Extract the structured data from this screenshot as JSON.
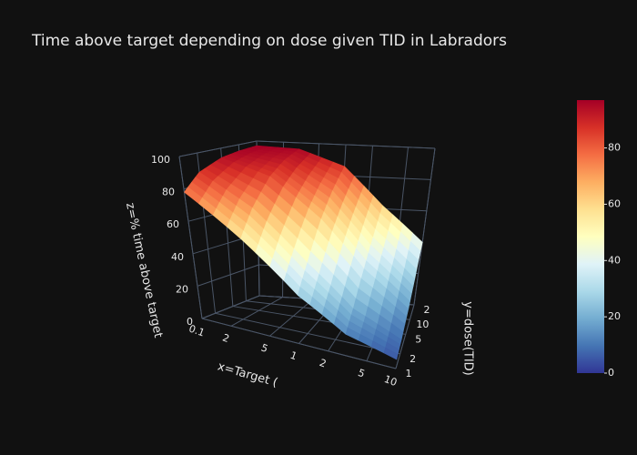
{
  "chart_data": {
    "type": "surface",
    "title": "Time above target depending on dose given TID in Labradors",
    "x_label": "x=Target (",
    "y_label": "y=dose(TID)",
    "z_label": "z=% time above target",
    "x": [
      0.1,
      0.3,
      1,
      3,
      10
    ],
    "y": [
      1,
      2,
      5,
      10,
      20
    ],
    "z": [
      [
        78,
        55,
        28,
        12,
        5
      ],
      [
        88,
        70,
        42,
        20,
        8
      ],
      [
        94,
        85,
        62,
        35,
        15
      ],
      [
        96,
        92,
        75,
        48,
        25
      ],
      [
        97,
        96,
        86,
        62,
        40
      ]
    ],
    "xlim": [
      0.1,
      10
    ],
    "ylim": [
      1,
      20
    ],
    "zlim": [
      0,
      100
    ],
    "x_log": true,
    "y_log": true,
    "xticks": [
      0.1,
      {
        "value": 0.2,
        "label": "2"
      },
      {
        "value": 0.5,
        "label": "5"
      },
      1,
      2,
      5,
      10
    ],
    "yticks": [
      1,
      2,
      5,
      10,
      {
        "value": 20,
        "label": "2"
      }
    ],
    "zticks": [
      0,
      20,
      40,
      60,
      80,
      100
    ],
    "clim": [
      0,
      97
    ],
    "colorbar_ticks": [
      0,
      20,
      40,
      60,
      80
    ],
    "colorscale": [
      "#313695",
      "#4575b4",
      "#74add1",
      "#abd9e9",
      "#e0f3f8",
      "#ffffbf",
      "#fee090",
      "#fdae61",
      "#f46d43",
      "#d73027",
      "#a50026"
    ],
    "grid": true
  }
}
